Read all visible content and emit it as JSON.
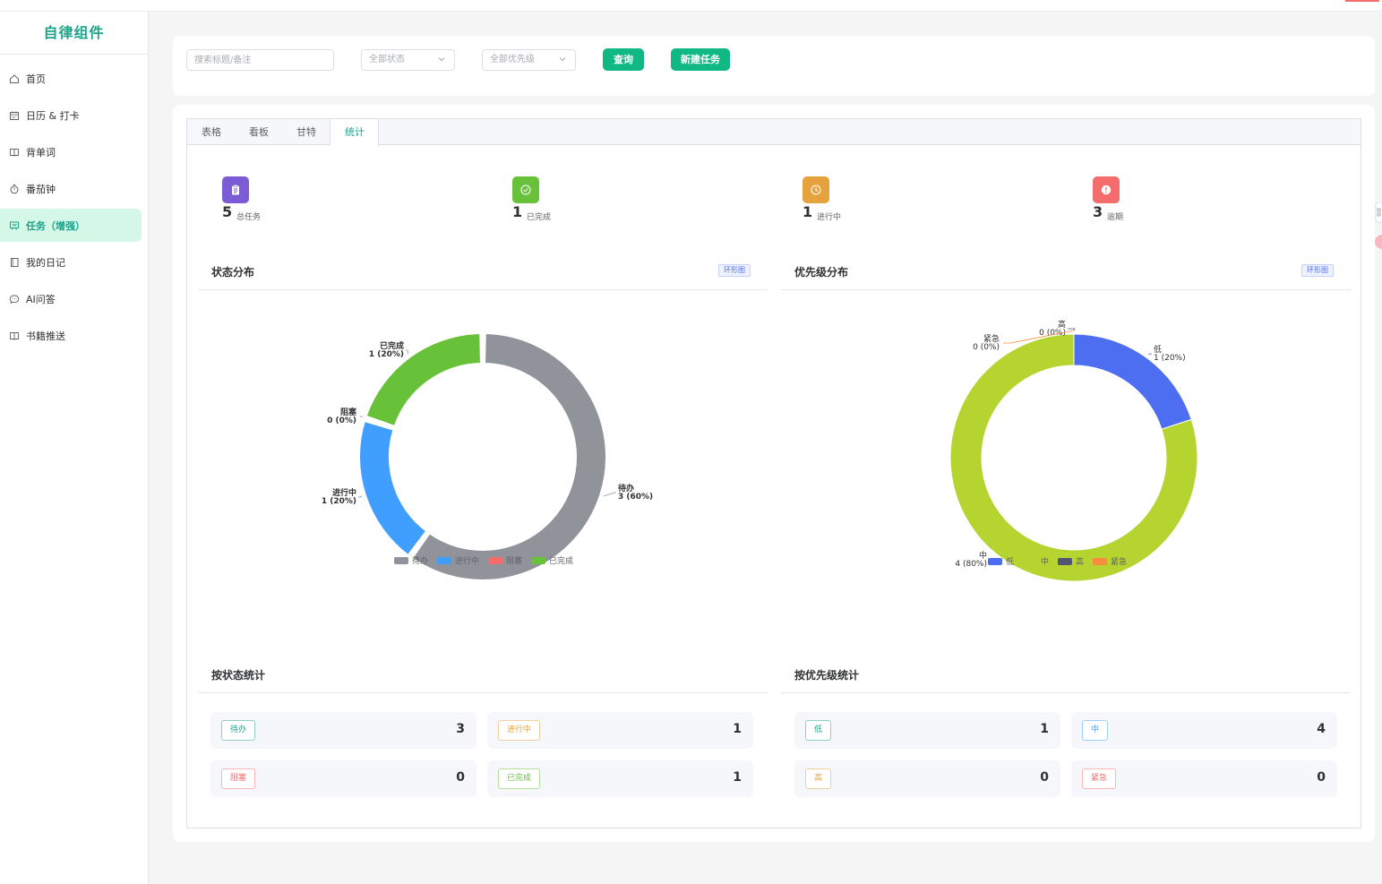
{
  "app": {
    "title": "自律组件"
  },
  "sidebar": {
    "items": [
      {
        "label": "首页",
        "icon": "home-icon",
        "active": false
      },
      {
        "label": "日历 & 打卡",
        "icon": "calendar-icon",
        "active": false
      },
      {
        "label": "背单词",
        "icon": "book-icon",
        "active": false
      },
      {
        "label": "番茄钟",
        "icon": "timer-icon",
        "active": false
      },
      {
        "label": "任务（增强）",
        "icon": "task-icon",
        "active": true
      },
      {
        "label": "我的日记",
        "icon": "notebook-icon",
        "active": false
      },
      {
        "label": "AI问答",
        "icon": "chat-icon",
        "active": false
      },
      {
        "label": "书籍推送",
        "icon": "book-icon",
        "active": false
      }
    ]
  },
  "filter": {
    "search_placeholder": "搜索标题/备注",
    "status_placeholder": "全部状态",
    "priority_placeholder": "全部优先级",
    "query_label": "查询",
    "new_label": "新建任务"
  },
  "tabs": [
    {
      "label": "表格",
      "active": false
    },
    {
      "label": "看板",
      "active": false
    },
    {
      "label": "甘特",
      "active": false
    },
    {
      "label": "统计",
      "active": true
    }
  ],
  "kpis": [
    {
      "value": "5",
      "label": "总任务",
      "color": "#7c5cd6",
      "icon": "clipboard-icon"
    },
    {
      "value": "1",
      "label": "已完成",
      "color": "#67c23a",
      "icon": "check-circle-icon"
    },
    {
      "value": "1",
      "label": "进行中",
      "color": "#e6a23c",
      "icon": "clock-icon"
    },
    {
      "value": "3",
      "label": "逾期",
      "color": "#f56c6c",
      "icon": "alert-icon"
    }
  ],
  "status_panel": {
    "title": "状态分布",
    "chip": "环形图"
  },
  "priority_panel": {
    "title": "优先级分布",
    "chip": "环形图"
  },
  "chart_data": [
    {
      "type": "pie",
      "title": "状态分布",
      "categories": [
        "待办",
        "进行中",
        "阻塞",
        "已完成"
      ],
      "values": [
        3,
        1,
        0,
        1
      ],
      "labels": [
        "3 (60%)",
        "1 (20%)",
        "0 (0%)",
        "1 (20%)"
      ],
      "colors": [
        "#909399",
        "#409eff",
        "#f56c6c",
        "#67c23a"
      ],
      "legend": "bottom",
      "donut": true
    },
    {
      "type": "pie",
      "title": "优先级分布",
      "categories": [
        "低",
        "中",
        "高",
        "紧急"
      ],
      "values": [
        1,
        4,
        0,
        0
      ],
      "labels": [
        "1 (20%)",
        "4 (80%)",
        "0 (0%)",
        "0 (0%)"
      ],
      "colors": [
        "#4e6ef2",
        "#b5d430",
        "#4f5573",
        "#fa8c40"
      ],
      "legend": "bottom",
      "donut": true
    }
  ],
  "status_stats": {
    "title": "按状态统计",
    "rows": [
      {
        "label": "待办",
        "count": "3",
        "color": "#1ba48a"
      },
      {
        "label": "进行中",
        "count": "1",
        "color": "#e6a23c"
      },
      {
        "label": "阻塞",
        "count": "0",
        "color": "#f56c6c"
      },
      {
        "label": "已完成",
        "count": "1",
        "color": "#67c23a"
      }
    ]
  },
  "priority_stats": {
    "title": "按优先级统计",
    "rows": [
      {
        "label": "低",
        "count": "1",
        "color": "#1ba48a"
      },
      {
        "label": "中",
        "count": "4",
        "color": "#409eff"
      },
      {
        "label": "高",
        "count": "0",
        "color": "#e6a23c"
      },
      {
        "label": "紧急",
        "count": "0",
        "color": "#f56c6c"
      }
    ]
  }
}
